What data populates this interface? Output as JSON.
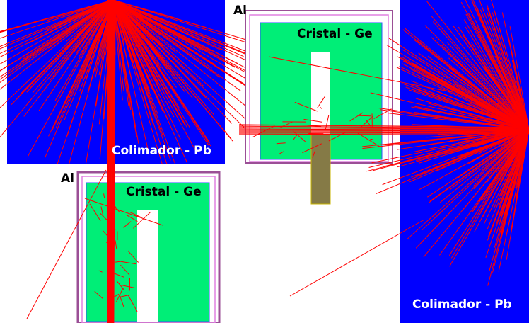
{
  "panels": [
    {
      "collimator": "Colimador - Pb",
      "crystal": "Cristal - Ge",
      "housing": "Al"
    },
    {
      "collimator": "Colimador - Pb",
      "crystal": "Cristal - Ge",
      "housing": "Al"
    }
  ]
}
